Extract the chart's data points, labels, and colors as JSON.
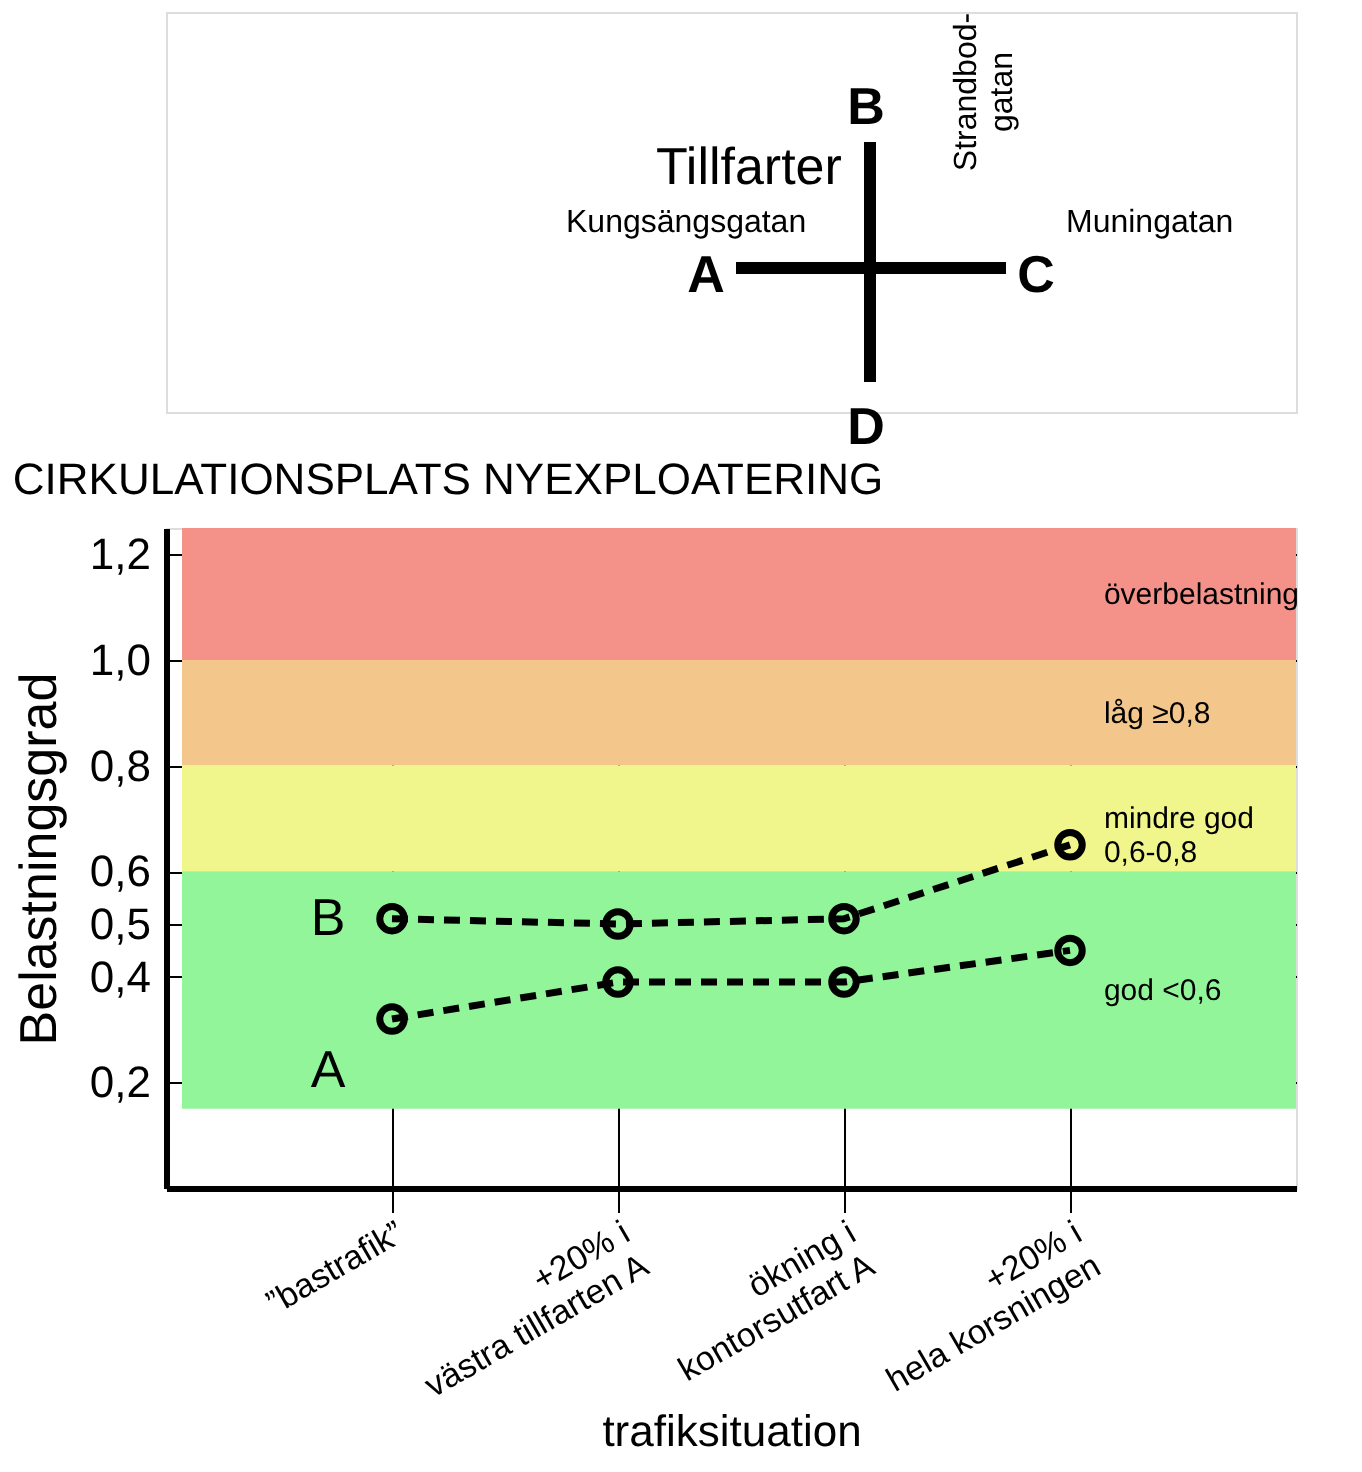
{
  "chart_data": {
    "type": "line",
    "title": "CIRKULATIONSPLATS NYEXPLOATERING",
    "xlabel": "trafiksituation",
    "ylabel": "Belastningsgrad",
    "categories": [
      "”bastrafik”",
      "+20% i\nvästra tillfarten A",
      "ökning i\nkontorsutfart A",
      "+20% i\nhela korsningen"
    ],
    "series": [
      {
        "name": "B",
        "color": "#000000",
        "values": [
          0.51,
          0.5,
          0.51,
          0.65
        ]
      },
      {
        "name": "A",
        "color": "#000000",
        "values": [
          0.32,
          0.39,
          0.39,
          0.45
        ]
      }
    ],
    "ylim": [
      0,
      1.25
    ],
    "yticks": [
      {
        "value": 0.2,
        "label": "0,2"
      },
      {
        "value": 0.4,
        "label": "0,4"
      },
      {
        "value": 0.5,
        "label": "0,5"
      },
      {
        "value": 0.6,
        "label": "0,6"
      },
      {
        "value": 0.8,
        "label": "0,8"
      },
      {
        "value": 1.0,
        "label": "1,0"
      },
      {
        "value": 1.2,
        "label": "1,2"
      }
    ],
    "bands": [
      {
        "axis": "y",
        "from": 1.0,
        "to": 1.25,
        "label": "överbelastning",
        "color": "#f4928a"
      },
      {
        "axis": "y",
        "from": 0.8,
        "to": 1.0,
        "label": "låg ≥0,8",
        "color": "#f3c68c"
      },
      {
        "axis": "y",
        "from": 0.6,
        "to": 0.8,
        "label": "mindre god\n0,6-0,8",
        "color": "#f1f68c"
      },
      {
        "axis": "y",
        "from": 0.15,
        "to": 0.6,
        "label": "god <0,6",
        "color": "#93f59a"
      }
    ],
    "grid": true,
    "marker": "circle",
    "line_style": "dashed",
    "annotations": [
      "Tillfarter",
      "Kungsängsgatan",
      "Strandbod-\ngatan",
      "Muningatan",
      "A",
      "B",
      "C",
      "D"
    ]
  }
}
